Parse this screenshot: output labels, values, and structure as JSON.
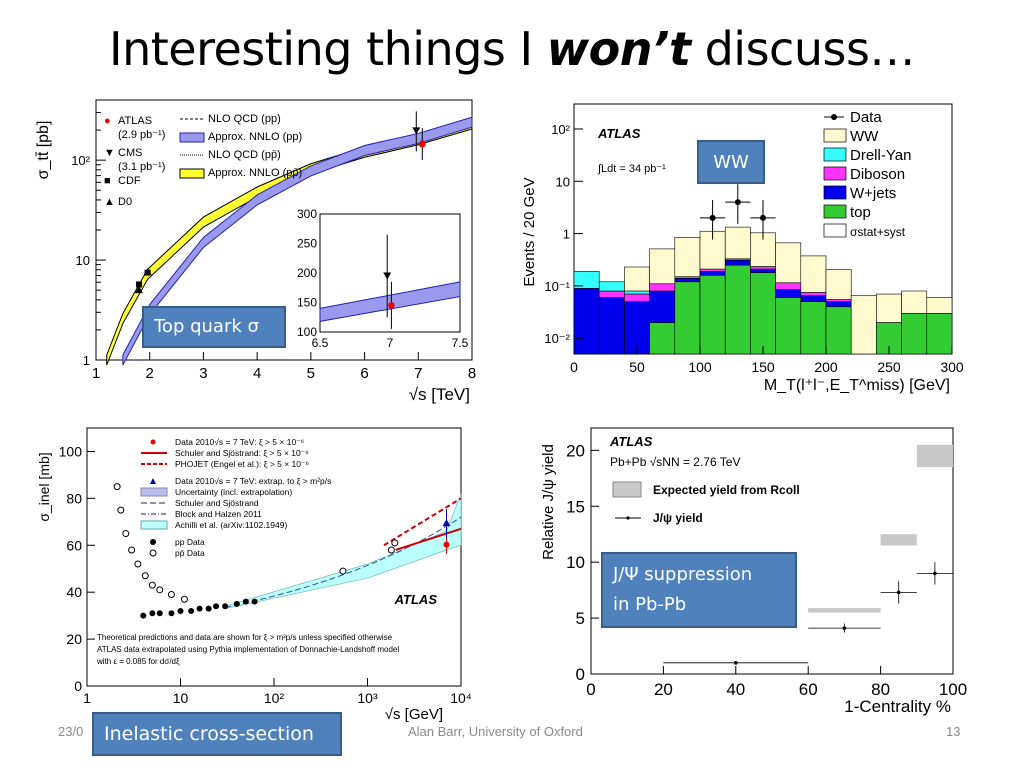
{
  "slide": {
    "title_pre": "Interesting things I ",
    "title_emph": "won’t",
    "title_post": " discuss…",
    "footer_date": "23/0",
    "footer_author": "Alan Barr, University of Oxford",
    "footer_page": "13"
  },
  "callouts": {
    "top_quark": "Top quark σ",
    "ww": "WW",
    "jpsi_line1": "J/Ψ suppression",
    "jpsi_line2": "in Pb-Pb",
    "inelastic": "Inelastic cross-section"
  },
  "colors": {
    "callout_fill": "#4f81bd",
    "ww": "#fffacd",
    "drell_yan": "#33ffff",
    "diboson": "#ff33ff",
    "wjets": "#0000ee",
    "top": "#33cc33",
    "nnlo_pp": "#9999ee",
    "nnlo_ppbar": "#ffff33",
    "uncertainty": "#bbffff"
  },
  "chart_data": [
    {
      "id": "ttbar",
      "type": "line",
      "ylabel": "σ_tt̄ [pb]",
      "xlabel": "√s [TeV]",
      "xlim": [
        1,
        8
      ],
      "ylim": [
        1,
        400
      ],
      "yscale": "log",
      "x_ticks": [
        "1",
        "2",
        "3",
        "4",
        "5",
        "6",
        "7",
        "8"
      ],
      "y_ticks": [
        "1",
        "10",
        "10²"
      ],
      "legend": [
        {
          "marker": "●",
          "text": "ATLAS",
          "sub": "(2.9 pb⁻¹)"
        },
        {
          "marker": "▼",
          "text": "CMS",
          "sub": "(3.1 pb⁻¹)"
        },
        {
          "marker": "■",
          "text": "CDF"
        },
        {
          "marker": "▲",
          "text": "D0"
        }
      ],
      "legend2": [
        "NLO QCD (pp)",
        "Approx. NNLO (pp)",
        "NLO QCD (pp̄)",
        "Approx. NNLO (pp̄)"
      ],
      "series": [
        {
          "name": "Approx. NNLO (pp)",
          "x": [
            1.5,
            2,
            3,
            4,
            5,
            6,
            7,
            8
          ],
          "y": [
            1.0,
            3.2,
            15,
            40,
            78,
            125,
            165,
            240
          ]
        },
        {
          "name": "Approx. NNLO (pp̄)",
          "x": [
            1.2,
            1.5,
            1.96,
            3,
            4,
            5,
            6,
            7,
            8
          ],
          "y": [
            1.0,
            2.6,
            7.2,
            24,
            48,
            82,
            120,
            160,
            230
          ]
        }
      ],
      "points": [
        {
          "name": "CDF",
          "x": 1.8,
          "y": 5.7
        },
        {
          "name": "CDF",
          "x": 1.96,
          "y": 7.5
        },
        {
          "name": "D0",
          "x": 1.8,
          "y": 5.0
        },
        {
          "name": "D0",
          "x": 1.96,
          "y": 7.6
        },
        {
          "name": "ATLAS",
          "x": 7,
          "y": 145
        },
        {
          "name": "CMS",
          "x": 7,
          "y": 194
        }
      ],
      "inset": {
        "xlim": [
          6.5,
          7.5
        ],
        "ylim": [
          100,
          300
        ],
        "x_ticks": [
          "6.5",
          "7",
          "7.5"
        ],
        "y_ticks": [
          "100",
          "150",
          "200",
          "250",
          "300"
        ]
      }
    },
    {
      "id": "ww",
      "type": "bar",
      "title": "ATLAS",
      "annotation": "∫Ldt = 34 pb⁻¹",
      "ylabel": "Events / 20 GeV",
      "xlabel": "M_T(l⁺l⁻,E_T^miss) [GeV]",
      "xlim": [
        0,
        300
      ],
      "ylim": [
        0.005,
        300
      ],
      "yscale": "log",
      "x_ticks": [
        "0",
        "50",
        "100",
        "150",
        "200",
        "250",
        "300"
      ],
      "y_ticks": [
        "10⁻²",
        "10⁻¹",
        "1",
        "10",
        "10²"
      ],
      "legend": [
        "Data",
        "WW",
        "Drell-Yan",
        "Diboson",
        "W+jets",
        "top",
        "σstat+syst"
      ],
      "bins": [
        0,
        20,
        40,
        60,
        80,
        100,
        120,
        140,
        160,
        180,
        200,
        220,
        240,
        260,
        280,
        300
      ],
      "stack": {
        "top": [
          0,
          0,
          0,
          0.02,
          0.12,
          0.16,
          0.25,
          0.18,
          0.06,
          0.05,
          0.04,
          0.005,
          0.02,
          0.03,
          0.03
        ],
        "wjets": [
          0.09,
          0.06,
          0.05,
          0.06,
          0.02,
          0.03,
          0.06,
          0.03,
          0.025,
          0.015,
          0.01,
          0,
          0,
          0,
          0
        ],
        "diboson": [
          0,
          0.02,
          0.02,
          0.03,
          0.01,
          0.02,
          0.02,
          0.025,
          0.03,
          0.01,
          0.005,
          0,
          0,
          0,
          0
        ],
        "drell_yan": [
          0.1,
          0.04,
          0.01,
          0,
          0,
          0,
          0,
          0,
          0,
          0,
          0,
          0,
          0,
          0,
          0
        ],
        "ww": [
          0,
          0,
          0.15,
          0.4,
          0.7,
          0.9,
          1.0,
          0.8,
          0.55,
          0.3,
          0.15,
          0.06,
          0.05,
          0.05,
          0.03
        ]
      },
      "data_points": [
        {
          "x": 110,
          "y": 2
        },
        {
          "x": 130,
          "y": 4
        },
        {
          "x": 150,
          "y": 2
        }
      ]
    },
    {
      "id": "inelastic",
      "type": "scatter",
      "title": "ATLAS",
      "ylabel": "σ_inel [mb]",
      "xlabel": "√s [GeV]",
      "xscale": "log",
      "xlim": [
        1,
        10000
      ],
      "ylim": [
        0,
        110
      ],
      "x_ticks": [
        "1",
        "10",
        "10²",
        "10³",
        "10⁴"
      ],
      "y_ticks": [
        "0",
        "20",
        "40",
        "60",
        "80",
        "100"
      ],
      "legend": [
        "Data 2010√s = 7 TeV: ξ > 5 × 10⁻⁶",
        "Schuler and Sjöstrand: ξ > 5 × 10⁻⁶",
        "PHOJET (Engel et al.): ξ > 5 × 10⁻⁶",
        "Data 2010√s = 7 TeV: extrap. to ξ > m²p/s",
        "Uncertainty (incl. extrapolation)",
        "Schuler and Sjöstrand",
        "Block and Halzen 2011",
        "Achilli et al. (arXiv:1102.1949)",
        "pp Data",
        "pp̄ Data"
      ],
      "note": [
        "Theoretical predictions and data are shown for ξ > m²p/s unless specified otherwise",
        "ATLAS data extrapolated using Pythia implementation of Donnachie-Landshoff model",
        "with ε = 0.085 for dσ/dξ"
      ],
      "pp_data": [
        {
          "x": 4,
          "y": 30
        },
        {
          "x": 5,
          "y": 31
        },
        {
          "x": 6,
          "y": 31
        },
        {
          "x": 8,
          "y": 31
        },
        {
          "x": 10,
          "y": 32
        },
        {
          "x": 13,
          "y": 32
        },
        {
          "x": 16,
          "y": 33
        },
        {
          "x": 20,
          "y": 33
        },
        {
          "x": 24,
          "y": 34
        },
        {
          "x": 30,
          "y": 34
        },
        {
          "x": 40,
          "y": 35
        },
        {
          "x": 50,
          "y": 36
        },
        {
          "x": 62,
          "y": 36
        }
      ],
      "ppbar_data": [
        {
          "x": 2.1,
          "y": 85
        },
        {
          "x": 2.3,
          "y": 75
        },
        {
          "x": 2.6,
          "y": 65
        },
        {
          "x": 3,
          "y": 58
        },
        {
          "x": 3.5,
          "y": 52
        },
        {
          "x": 4.2,
          "y": 47
        },
        {
          "x": 5,
          "y": 43
        },
        {
          "x": 6,
          "y": 41
        },
        {
          "x": 8,
          "y": 39
        },
        {
          "x": 11,
          "y": 37
        },
        {
          "x": 546,
          "y": 49
        },
        {
          "x": 1800,
          "y": 58
        },
        {
          "x": 1960,
          "y": 61
        }
      ],
      "atlas_7tev": {
        "x": 7000,
        "y": 60.3
      },
      "atlas_extrap": {
        "x": 7000,
        "y": 69.4
      }
    },
    {
      "id": "jpsi",
      "type": "scatter",
      "title": "ATLAS",
      "subtitle": "Pb+Pb √sNN = 2.76 TeV",
      "ylabel": "Relative J/ψ yield",
      "xlabel": "1-Centrality %",
      "xlim": [
        0,
        100
      ],
      "ylim": [
        0,
        22
      ],
      "x_ticks": [
        "0",
        "20",
        "40",
        "60",
        "80",
        "100"
      ],
      "y_ticks": [
        "0",
        "5",
        "10",
        "15",
        "20"
      ],
      "legend": [
        "Expected yield from Rcoll",
        "J/ψ yield"
      ],
      "points": [
        {
          "x": 40,
          "xlo": 20,
          "xhi": 60,
          "y": 1,
          "err": 0
        },
        {
          "x": 70,
          "xlo": 60,
          "xhi": 80,
          "y": 4.1,
          "err": 0.4
        },
        {
          "x": 85,
          "xlo": 80,
          "xhi": 90,
          "y": 7.3,
          "err": 1.0
        },
        {
          "x": 95,
          "xlo": 90,
          "xhi": 100,
          "y": 9.0,
          "err": 1.0
        }
      ],
      "expected": [
        {
          "xlo": 60,
          "xhi": 80,
          "ylo": 5.5,
          "yhi": 5.9
        },
        {
          "xlo": 80,
          "xhi": 90,
          "ylo": 11.5,
          "yhi": 12.5
        },
        {
          "xlo": 90,
          "xhi": 100,
          "ylo": 18.5,
          "yhi": 20.5
        }
      ]
    }
  ]
}
